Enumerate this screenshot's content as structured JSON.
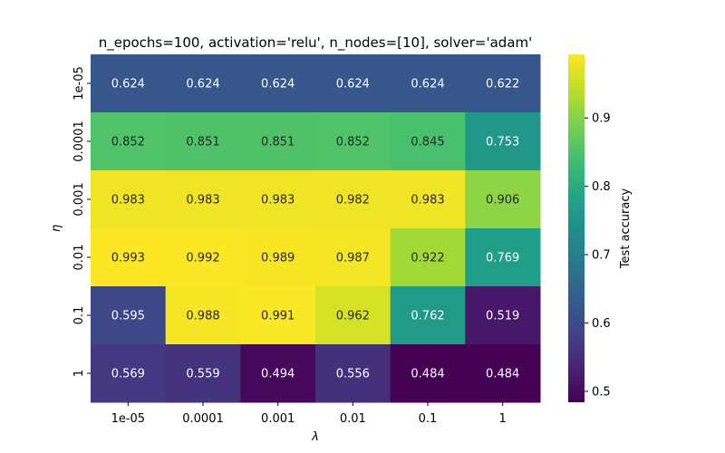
{
  "chart_data": {
    "type": "heatmap",
    "title": "n_epochs=100, activation='relu', n_nodes=[10], solver='adam'",
    "xlabel": "λ",
    "ylabel": "η",
    "x_categories": [
      "1e-05",
      "0.0001",
      "0.001",
      "0.01",
      "0.1",
      "1"
    ],
    "y_categories": [
      "1e-05",
      "0.0001",
      "0.001",
      "0.01",
      "0.1",
      "1"
    ],
    "values": [
      [
        0.624,
        0.624,
        0.624,
        0.624,
        0.624,
        0.622
      ],
      [
        0.852,
        0.851,
        0.851,
        0.852,
        0.845,
        0.753
      ],
      [
        0.983,
        0.983,
        0.983,
        0.982,
        0.983,
        0.906
      ],
      [
        0.993,
        0.992,
        0.989,
        0.987,
        0.922,
        0.769
      ],
      [
        0.595,
        0.988,
        0.991,
        0.962,
        0.762,
        0.519
      ],
      [
        0.569,
        0.559,
        0.494,
        0.556,
        0.484,
        0.484
      ]
    ],
    "colorbar": {
      "label": "Test accuracy",
      "range": [
        0.484,
        0.993
      ],
      "ticks": [
        "0.5",
        "0.6",
        "0.7",
        "0.8",
        "0.9"
      ],
      "colormap": "viridis"
    },
    "grid": false
  }
}
